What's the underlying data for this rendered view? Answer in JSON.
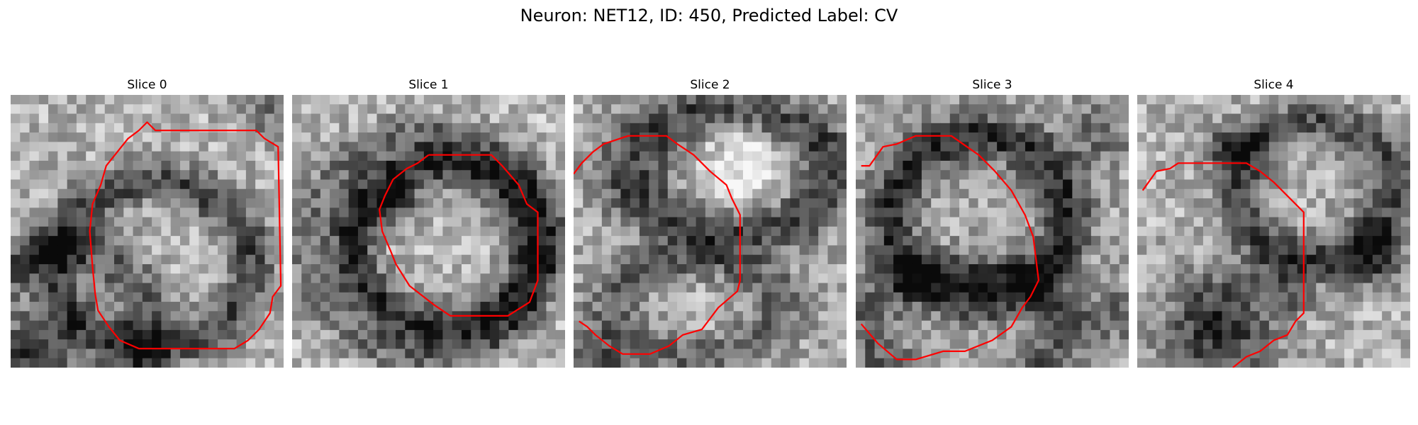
{
  "figure": {
    "title": "Neuron: NET12, ID: 450, Predicted Label: CV",
    "contour_color": "#ff0000"
  },
  "panels": [
    {
      "title": "Slice 0"
    },
    {
      "title": "Slice 1"
    },
    {
      "title": "Slice 2"
    },
    {
      "title": "Slice 3"
    },
    {
      "title": "Slice 4"
    }
  ]
}
